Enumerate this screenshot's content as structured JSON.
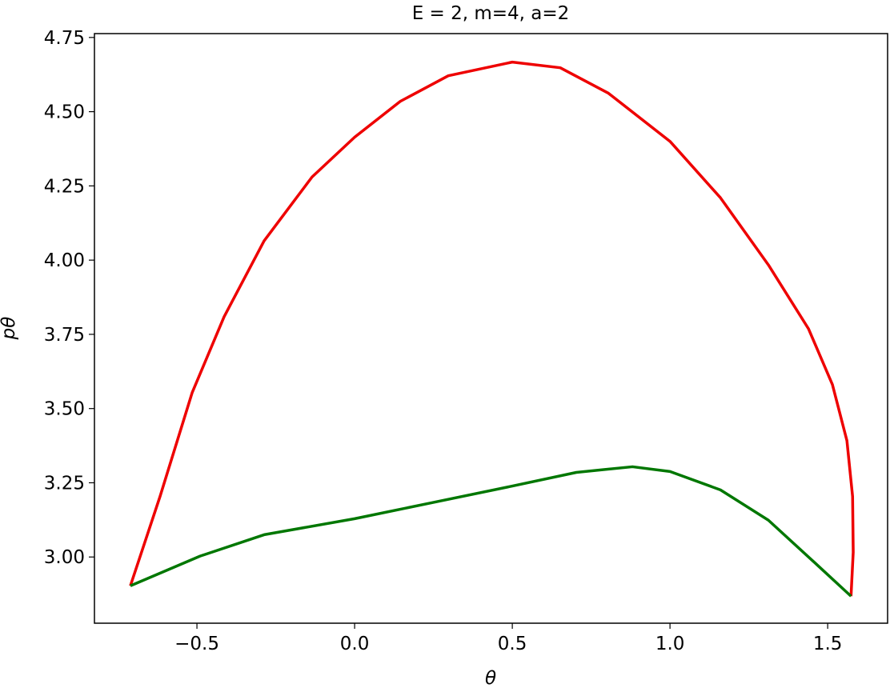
{
  "chart_data": {
    "type": "line",
    "title": "E = 2, m=4, a=2",
    "x_label": "θ",
    "y_label": "pθ",
    "xlim": [
      -0.825,
      1.69
    ],
    "ylim": [
      2.777,
      4.763
    ],
    "xticks": [
      {
        "value": -0.5,
        "label": "−0.5"
      },
      {
        "value": 0,
        "label": "0.0"
      },
      0.5,
      {
        "value": 1,
        "label": "1.0"
      },
      1.5
    ],
    "yticks": [
      {
        "value": 3,
        "label": "3.00"
      },
      3.25,
      {
        "value": 3.5,
        "label": "3.50"
      },
      3.75,
      {
        "value": 4,
        "label": "4.00"
      },
      4.25,
      {
        "value": 4.5,
        "label": "4.50"
      },
      4.75
    ],
    "grid": false,
    "series": [
      {
        "color": "#ee0000",
        "x": [
          -0.711,
          -0.617,
          -0.515,
          -0.414,
          -0.287,
          -0.135,
          0,
          0.145,
          0.297,
          0.5,
          0.652,
          0.805,
          1.0,
          1.16,
          1.312,
          1.439,
          1.515,
          1.561,
          1.579,
          1.581,
          1.574
        ],
        "values": [
          2.903,
          3.204,
          3.554,
          3.809,
          4.065,
          4.28,
          4.414,
          4.535,
          4.621,
          4.667,
          4.648,
          4.562,
          4.4,
          4.21,
          3.984,
          3.769,
          3.581,
          3.392,
          3.204,
          3.016,
          2.868
        ]
      },
      {
        "color": "#007700",
        "x": [
          -0.711,
          -0.49,
          -0.287,
          0,
          0.246,
          0.5,
          0.703,
          0.881,
          1.0,
          1.16,
          1.312,
          1.464,
          1.574
        ],
        "values": [
          2.903,
          3.003,
          3.075,
          3.129,
          3.183,
          3.239,
          3.285,
          3.304,
          3.288,
          3.226,
          3.124,
          2.976,
          2.868
        ]
      }
    ]
  }
}
